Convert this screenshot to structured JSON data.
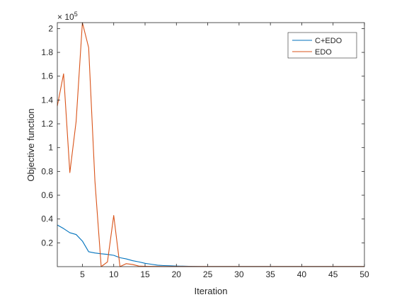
{
  "chart_data": {
    "type": "line",
    "title": "",
    "xlabel": "Iteration",
    "ylabel": "Objective function",
    "y_exponent_label": "× 10",
    "y_exponent_value": "5",
    "xlim": [
      1,
      50
    ],
    "ylim": [
      0,
      2.05
    ],
    "x_ticks": [
      5,
      10,
      15,
      20,
      25,
      30,
      35,
      40,
      45,
      50
    ],
    "x_tick_labels": [
      "5",
      "10",
      "15",
      "20",
      "25",
      "30",
      "35",
      "40",
      "45",
      "50"
    ],
    "y_ticks": [
      0.2,
      0.4,
      0.6,
      0.8,
      1.0,
      1.2,
      1.4,
      1.6,
      1.8,
      2.0
    ],
    "y_tick_labels": [
      "0.2",
      "0.4",
      "0.6",
      "0.8",
      "1",
      "1.2",
      "1.4",
      "1.6",
      "1.8",
      "2"
    ],
    "grid": false,
    "legend_position": "top-right",
    "x": [
      1,
      2,
      3,
      4,
      5,
      6,
      7,
      8,
      9,
      10,
      11,
      12,
      13,
      14,
      15,
      16,
      17,
      18,
      19,
      20,
      21,
      22,
      23,
      24,
      25,
      26,
      27,
      28,
      29,
      30,
      31,
      32,
      33,
      34,
      35,
      36,
      37,
      38,
      39,
      40,
      41,
      42,
      43,
      44,
      45,
      46,
      47,
      48,
      49,
      50
    ],
    "series": [
      {
        "name": "C+EDO",
        "color": "#0072BD",
        "values": [
          0.35,
          0.32,
          0.285,
          0.27,
          0.215,
          0.125,
          0.115,
          0.108,
          0.103,
          0.095,
          0.075,
          0.065,
          0.05,
          0.04,
          0.028,
          0.02,
          0.012,
          0.009,
          0.007,
          0.005,
          0.004,
          0.003,
          0.002,
          0.0015,
          0.001,
          0.001,
          0.001,
          0.001,
          0.001,
          0.001,
          0.001,
          0.001,
          0.001,
          0.001,
          0.001,
          0.001,
          0.001,
          0.001,
          0.001,
          0.001,
          0.001,
          0.001,
          0.001,
          0.001,
          0.001,
          0.001,
          0.001,
          0.001,
          0.001,
          0.001
        ]
      },
      {
        "name": "EDO",
        "color": "#D95319",
        "values": [
          1.35,
          1.62,
          0.79,
          1.22,
          2.05,
          1.84,
          0.72,
          0.0,
          0.04,
          0.43,
          0.0,
          0.025,
          0.018,
          0.005,
          0.003,
          0.002,
          0.002,
          0.001,
          0.001,
          0.001,
          0.001,
          0.001,
          0.001,
          0.001,
          0.001,
          0.001,
          0.001,
          0.001,
          0.001,
          0.001,
          0.001,
          0.001,
          0.001,
          0.001,
          0.001,
          0.001,
          0.001,
          0.001,
          0.001,
          0.001,
          0.001,
          0.001,
          0.001,
          0.001,
          0.001,
          0.001,
          0.001,
          0.001,
          0.001,
          0.001
        ]
      }
    ]
  }
}
